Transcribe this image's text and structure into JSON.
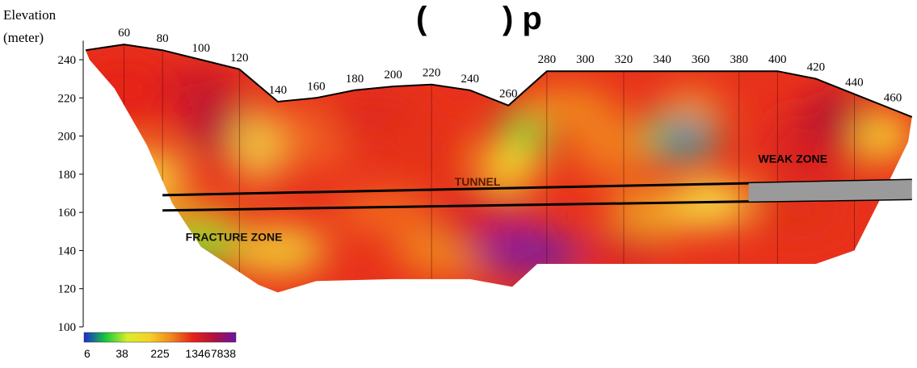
{
  "chart_data": {
    "type": "heatmap",
    "title_fragment": "(",
    "title_fragment_right": ") p",
    "ylabel_line1": "Elevation",
    "ylabel_line2": "(meter)",
    "ylim": [
      100,
      250
    ],
    "y_ticks": [
      240,
      220,
      200,
      180,
      160,
      140,
      120,
      100
    ],
    "x_ticks": [
      60,
      80,
      100,
      120,
      140,
      160,
      180,
      200,
      220,
      240,
      260,
      280,
      300,
      320,
      340,
      360,
      380,
      400,
      420,
      440,
      460
    ],
    "surface_profile": [
      {
        "x": 40,
        "y": 245
      },
      {
        "x": 60,
        "y": 248
      },
      {
        "x": 80,
        "y": 245
      },
      {
        "x": 100,
        "y": 240
      },
      {
        "x": 120,
        "y": 235
      },
      {
        "x": 140,
        "y": 218
      },
      {
        "x": 160,
        "y": 220
      },
      {
        "x": 180,
        "y": 224
      },
      {
        "x": 200,
        "y": 226
      },
      {
        "x": 220,
        "y": 227
      },
      {
        "x": 240,
        "y": 224
      },
      {
        "x": 260,
        "y": 216
      },
      {
        "x": 280,
        "y": 234
      },
      {
        "x": 300,
        "y": 234
      },
      {
        "x": 320,
        "y": 234
      },
      {
        "x": 340,
        "y": 234
      },
      {
        "x": 360,
        "y": 234
      },
      {
        "x": 380,
        "y": 234
      },
      {
        "x": 400,
        "y": 234
      },
      {
        "x": 420,
        "y": 230
      },
      {
        "x": 440,
        "y": 222
      },
      {
        "x": 460,
        "y": 214
      },
      {
        "x": 470,
        "y": 210
      }
    ],
    "annotations": [
      {
        "text": "TUNNEL",
        "x": 232,
        "y": 174,
        "color": "#5a1a00"
      },
      {
        "text": "WEAK ZONE",
        "x": 390,
        "y": 186,
        "color": "#000000"
      },
      {
        "text": "FRACTURE ZONE",
        "x": 92,
        "y": 145,
        "color": "#111111"
      }
    ],
    "tunnel": [
      {
        "x0": 80,
        "y0": 169,
        "x1": 470,
        "y1": 177
      },
      {
        "x0": 80,
        "y0": 161,
        "x1": 470,
        "y1": 167
      }
    ],
    "colorbar": {
      "ticks": [
        "6",
        "38",
        "225",
        "1346",
        "7838"
      ],
      "colors": [
        "#1a2bd6",
        "#18c93a",
        "#d8ee2a",
        "#f5d22a",
        "#f08a1a",
        "#e42418",
        "#b01040",
        "#6a14a0"
      ]
    }
  }
}
